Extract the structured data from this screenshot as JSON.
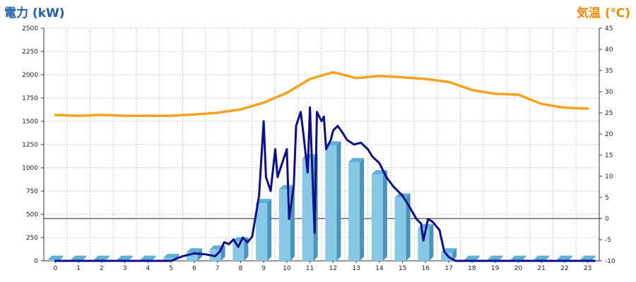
{
  "colors": {
    "left_title": "#1f5fa8",
    "right_title": "#f08a00",
    "temperature_line": "#f5a21c",
    "power_line": "#0b0f8c",
    "bar_front": "#86c8e6",
    "bar_side": "#4a93bc",
    "bar_top": "#5fb0d6",
    "grid": "#c8c8c8"
  },
  "chart_data": {
    "type": "bar",
    "title_left": "電力 (kW)",
    "title_right": "気温 (℃)",
    "xlabel": "",
    "ylabel": "電力 (kW)",
    "y2label": "気温 (℃)",
    "ylim": [
      0,
      2500
    ],
    "y2lim": [
      -10,
      45
    ],
    "y_ticks": [
      "0",
      "250",
      "500",
      "750",
      "1000",
      "1250",
      "1500",
      "1750",
      "2000",
      "2250",
      "2500"
    ],
    "y2_ticks": [
      "-10",
      "-5",
      "0",
      "5",
      "10",
      "15",
      "20",
      "25",
      "30",
      "35",
      "40",
      "45"
    ],
    "categories": [
      "0",
      "1",
      "2",
      "3",
      "4",
      "5",
      "6",
      "7",
      "8",
      "9",
      "10",
      "11",
      "12",
      "13",
      "14",
      "15",
      "16",
      "17",
      "18",
      "19",
      "20",
      "21",
      "22",
      "23"
    ],
    "grid": true,
    "series": [
      {
        "kind": "bar",
        "axis": "left",
        "values": [
          10,
          10,
          10,
          10,
          10,
          30,
          90,
          120,
          210,
          620,
          770,
          1100,
          1240,
          1060,
          930,
          680,
          350,
          90,
          10,
          10,
          10,
          10,
          10,
          10
        ]
      },
      {
        "kind": "line",
        "axis": "left",
        "x": [
          0,
          4,
          5,
          5.5,
          6,
          6.5,
          6.9,
          7.1,
          7.3,
          7.5,
          7.7,
          7.9,
          8.1,
          8.3,
          8.5,
          8.6,
          8.8,
          9.0,
          9.1,
          9.3,
          9.5,
          9.6,
          9.8,
          10.0,
          10.1,
          10.3,
          10.4,
          10.6,
          10.7,
          10.9,
          11.0,
          11.2,
          11.3,
          11.5,
          11.6,
          11.7,
          11.9,
          12.0,
          12.2,
          12.4,
          12.6,
          12.9,
          13.2,
          13.5,
          13.7,
          14.0,
          14.3,
          14.6,
          15.0,
          15.3,
          15.6,
          15.8,
          15.9,
          16.1,
          16.3,
          16.6,
          16.8,
          17.0,
          17.3,
          17.5,
          20,
          23.3
        ],
        "values": [
          0,
          0,
          0,
          50,
          80,
          70,
          50,
          100,
          200,
          180,
          230,
          150,
          250,
          200,
          260,
          400,
          700,
          1500,
          900,
          750,
          1200,
          900,
          1050,
          1200,
          450,
          800,
          1450,
          1600,
          1400,
          950,
          1650,
          300,
          1600,
          1500,
          1550,
          1200,
          1300,
          1400,
          1450,
          1380,
          1300,
          1250,
          1270,
          1200,
          1120,
          1050,
          900,
          800,
          700,
          580,
          450,
          400,
          220,
          450,
          420,
          330,
          100,
          40,
          0,
          0,
          0,
          0
        ]
      },
      {
        "kind": "line",
        "axis": "right",
        "x": [
          0,
          1,
          2,
          3,
          4,
          5,
          6,
          7,
          8,
          9,
          10,
          11,
          12,
          13,
          14,
          15,
          16,
          17,
          18,
          19,
          20,
          21,
          22,
          23
        ],
        "values": [
          24.5,
          24.3,
          24.5,
          24.3,
          24.3,
          24.3,
          24.6,
          25.0,
          25.8,
          27.4,
          29.7,
          33.0,
          34.6,
          33.2,
          33.7,
          33.4,
          33.0,
          32.3,
          30.4,
          29.5,
          29.3,
          27.1,
          26.2,
          26.0
        ]
      }
    ]
  }
}
